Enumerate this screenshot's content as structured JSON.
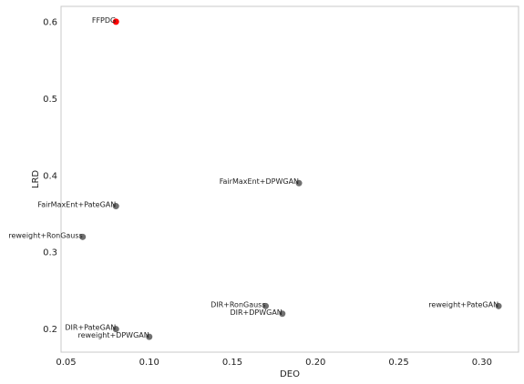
{
  "chart_data": {
    "type": "scatter",
    "title": "",
    "xlabel": "DEO",
    "ylabel": "LRD",
    "xlim": [
      0.047,
      0.322
    ],
    "ylim": [
      0.17,
      0.62
    ],
    "xticks": [
      "0.05",
      "0.10",
      "0.15",
      "0.20",
      "0.25",
      "0.30"
    ],
    "yticks": [
      "0.2",
      "0.3",
      "0.4",
      "0.5",
      "0.6"
    ],
    "grid": false,
    "colors": {
      "highlight": "#ff0000",
      "default": "#707070"
    },
    "points": [
      {
        "label": "FFPDG",
        "x": 0.08,
        "y": 0.6,
        "highlight": true
      },
      {
        "label": "FairMaxEnt+DPWGAN",
        "x": 0.19,
        "y": 0.39,
        "highlight": false
      },
      {
        "label": "FairMaxEnt+PateGAN",
        "x": 0.08,
        "y": 0.36,
        "highlight": false
      },
      {
        "label": "reweight+RonGauss",
        "x": 0.06,
        "y": 0.32,
        "highlight": false
      },
      {
        "label": "DIR+RonGauss",
        "x": 0.17,
        "y": 0.23,
        "highlight": false
      },
      {
        "label": "reweight+PateGAN",
        "x": 0.31,
        "y": 0.23,
        "highlight": false
      },
      {
        "label": "DIR+DPWGAN",
        "x": 0.18,
        "y": 0.22,
        "highlight": false
      },
      {
        "label": "DIR+PateGAN",
        "x": 0.08,
        "y": 0.2,
        "highlight": false
      },
      {
        "label": "reweight+DPWGAN",
        "x": 0.1,
        "y": 0.19,
        "highlight": false
      }
    ]
  }
}
